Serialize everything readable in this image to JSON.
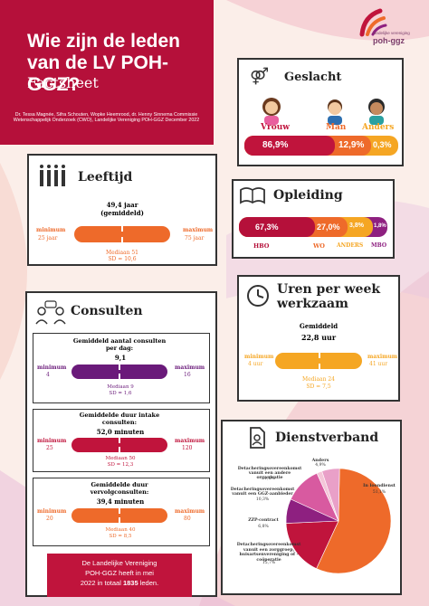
{
  "header": {
    "title": "Wie zijn de leden van de LV POH-GGZ?",
    "subtitle": "Factsheet",
    "credits": "Dr. Tessa Magnée, Sifra Schouten, Wopke Heemrood, dr. Henny Sinnema Commissie Wetenschappelijk Onderzoek (CWO), Landelijke Vereniging POH-GGZ December 2022"
  },
  "logo": {
    "line1": "landelijke vereniging",
    "line2": "poh-ggz"
  },
  "geslacht": {
    "title": "Geslacht",
    "labels": [
      "Vrouw",
      "Man",
      "Anders"
    ],
    "values": [
      "86,9%",
      "12,9%",
      "0,3%"
    ],
    "colors": [
      "#c0143c",
      "#ee6a2a",
      "#f5a623"
    ]
  },
  "leeftijd": {
    "title": "Leeftijd",
    "mean": "49,4 jaar",
    "mean_note": "(gemiddeld)",
    "min_label": "minimum",
    "min_value": "25 jaar",
    "max_label": "maximum",
    "max_value": "75 jaar",
    "median": "Mediaan 51",
    "sd": "SD = 10,6"
  },
  "opleiding": {
    "title": "Opleiding",
    "values": [
      "67,3%",
      "27,0%",
      "3,8%",
      "1,8%"
    ],
    "labels": [
      "HBO",
      "WO",
      "ANDERS",
      "MBO"
    ],
    "colors": [
      "#b5103a",
      "#ee6a2a",
      "#f5a623",
      "#8e2080"
    ]
  },
  "consulten": {
    "title": "Consulten",
    "blocks": [
      {
        "title": "Gemiddeld aantal consulten per dag:",
        "mean": "9,1",
        "min_label": "minimum",
        "min_value": "4",
        "max_label": "maximum",
        "max_value": "16",
        "median": "Mediaan 9",
        "sd": "SD = 1,6"
      },
      {
        "title": "Gemiddelde duur intake consulten:",
        "mean": "52,0 minuten",
        "min_label": "minimum",
        "min_value": "25",
        "max_label": "maximum",
        "max_value": "120",
        "median": "Mediaan 50",
        "sd": "SD = 12,3"
      },
      {
        "title": "Gemiddelde duur vervolgconsulten:",
        "mean": "39,4 minuten",
        "min_label": "minimum",
        "min_value": "20",
        "max_label": "maximum",
        "max_value": "80",
        "median": "Mediaan 40",
        "sd": "SD = 8,5"
      }
    ]
  },
  "uren": {
    "title_line1": "Uren per week",
    "title_line2": "werkzaam",
    "mean_label": "Gemiddeld",
    "mean": "22,8 uur",
    "min_label": "minimum",
    "min_value": "4 uur",
    "max_label": "maximum",
    "max_value": "41 uur",
    "median": "Mediaan 24",
    "sd": "SD = 7,5"
  },
  "dienstverband": {
    "title": "Dienstverband",
    "slices": [
      {
        "label": "In loondienst",
        "value": "51,1%",
        "pct": 51.1,
        "color": "#ee6a2a"
      },
      {
        "label": "Detacheringsovereenkomst vanuit een zorggroep, huisartsenvereniging of -coöperatie",
        "value": "15,7%",
        "pct": 15.7,
        "color": "#c0143c"
      },
      {
        "label": "ZZP-contract",
        "value": "6,8%",
        "pct": 6.8,
        "color": "#8e2080"
      },
      {
        "label": "Detacheringsovereenkomst vanuit een GGZ-aanbieder",
        "value": "10,3%",
        "pct": 10.3,
        "color": "#d85aa0"
      },
      {
        "label": "Detacheringsovereenkomst vanuit een andere organisatie",
        "value": "1,5%",
        "pct": 1.5,
        "color": "#f4c6d8"
      },
      {
        "label": "Anders",
        "value": "4,9%",
        "pct": 4.9,
        "color": "#e9a0c8"
      }
    ]
  },
  "footer": {
    "line1": "De Landelijke Vereniging",
    "line2": "POH-GGZ heeft in mei",
    "line3_pre": "2022 in totaal ",
    "count": "1835",
    "line3_post": " leden."
  }
}
